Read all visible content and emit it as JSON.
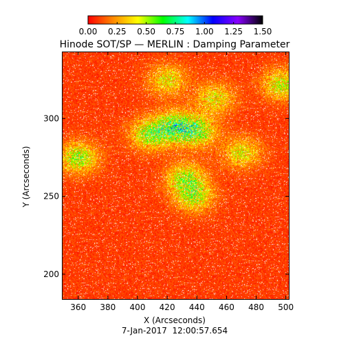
{
  "chart_data": {
    "type": "heatmap",
    "title": "Hinode SOT/SP — MERLIN : Damping Parameter",
    "xlabel": "X (Arcseconds)",
    "ylabel": "Y (Arcseconds)",
    "timestamp": "7-Jan-2017  12:00:57.654",
    "xlim": [
      349,
      502
    ],
    "ylim": [
      184,
      343
    ],
    "x_ticks": [
      "360",
      "380",
      "400",
      "420",
      "440",
      "460",
      "480",
      "500"
    ],
    "x_tick_values": [
      360,
      380,
      400,
      420,
      440,
      460,
      480,
      500
    ],
    "y_ticks": [
      "200",
      "250",
      "300"
    ],
    "y_tick_values": [
      200,
      250,
      300
    ],
    "colorbar": {
      "range": [
        0.0,
        1.5
      ],
      "tick_labels": [
        "0.00",
        "0.25",
        "0.50",
        "0.75",
        "1.00",
        "1.25",
        "1.50"
      ],
      "tick_values": [
        0.0,
        0.25,
        0.5,
        0.75,
        1.0,
        1.25,
        1.5
      ],
      "colors": [
        "#ff0000",
        "#ff8800",
        "#ffff00",
        "#00ff00",
        "#00ffff",
        "#0000ff",
        "#8800ff",
        "#000000"
      ]
    },
    "background_value": 0.1,
    "elevated_regions": [
      {
        "x": 425,
        "y": 295,
        "level": 0.45
      },
      {
        "x": 408,
        "y": 290,
        "level": 0.4
      },
      {
        "x": 440,
        "y": 292,
        "level": 0.4
      },
      {
        "x": 360,
        "y": 275,
        "level": 0.4
      },
      {
        "x": 432,
        "y": 262,
        "level": 0.35
      },
      {
        "x": 438,
        "y": 250,
        "level": 0.35
      },
      {
        "x": 497,
        "y": 322,
        "level": 0.35
      },
      {
        "x": 470,
        "y": 278,
        "level": 0.3
      },
      {
        "x": 452,
        "y": 313,
        "level": 0.3
      },
      {
        "x": 420,
        "y": 325,
        "level": 0.3
      }
    ]
  }
}
